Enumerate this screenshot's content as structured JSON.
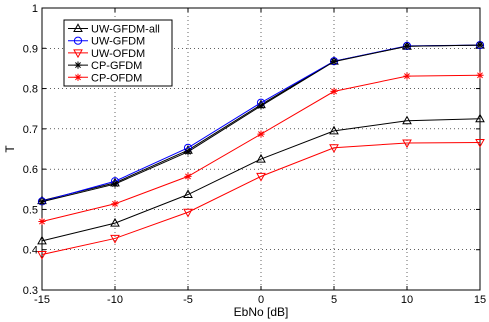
{
  "chart_data": {
    "type": "line",
    "title": "",
    "xlabel": "EbNo [dB]",
    "ylabel": "T",
    "xlim": [
      -15,
      15
    ],
    "ylim": [
      0.3,
      1
    ],
    "x": [
      -15,
      -10,
      -5,
      0,
      5,
      10,
      15
    ],
    "xticks": [
      "-15",
      "-10",
      "-5",
      "0",
      "5",
      "10",
      "15"
    ],
    "yticks": [
      "0.3",
      "0.4",
      "0.5",
      "0.6",
      "0.7",
      "0.8",
      "0.9",
      "1"
    ],
    "xtick_values": [
      -15,
      -10,
      -5,
      0,
      5,
      10,
      15
    ],
    "ytick_values": [
      0.3,
      0.4,
      0.5,
      0.6,
      0.7,
      0.8,
      0.9,
      1.0
    ],
    "grid": true,
    "legend_position": "top-left",
    "series": [
      {
        "name": "UW-GFDM-all",
        "color": "#000000",
        "marker": "triangle-up",
        "values": [
          0.522,
          0.566,
          0.647,
          0.76,
          0.868,
          0.905,
          0.908
        ],
        "in_legend": true
      },
      {
        "name": "UW-GFDM",
        "color": "#0000ff",
        "marker": "circle",
        "values": [
          0.52,
          0.57,
          0.653,
          0.765,
          0.868,
          0.906,
          0.908
        ],
        "in_legend": true
      },
      {
        "name": "UW-OFDM",
        "color": "#ff0000",
        "marker": "triangle-down",
        "values": [
          0.388,
          0.428,
          0.493,
          0.582,
          0.653,
          0.665,
          0.666
        ],
        "in_legend": true
      },
      {
        "name": "CP-GFDM",
        "color": "#000000",
        "marker": "asterisk",
        "values": [
          0.519,
          0.563,
          0.643,
          0.757,
          0.867,
          0.905,
          0.908
        ],
        "in_legend": true
      },
      {
        "name": "CP-OFDM",
        "color": "#ff0000",
        "marker": "asterisk",
        "values": [
          0.47,
          0.514,
          0.582,
          0.687,
          0.793,
          0.831,
          0.833
        ],
        "in_legend": true
      },
      {
        "name": "",
        "color": "#000000",
        "marker": "triangle-up",
        "values": [
          0.422,
          0.466,
          0.537,
          0.625,
          0.695,
          0.72,
          0.725
        ],
        "in_legend": false
      }
    ]
  }
}
